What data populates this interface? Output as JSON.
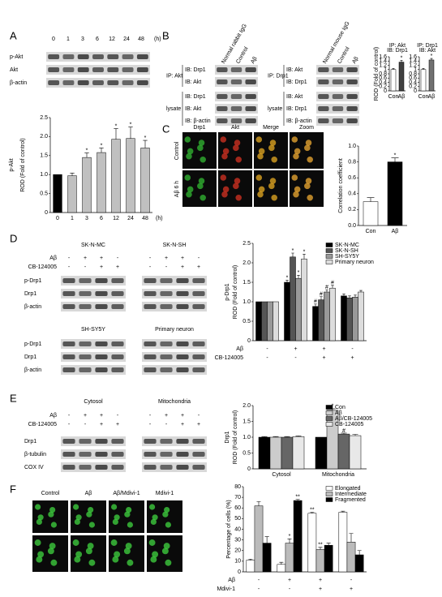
{
  "figure": {
    "panels": [
      "A",
      "B",
      "C",
      "D",
      "E",
      "F"
    ],
    "blot_a": {
      "lanes": [
        "0",
        "1",
        "3",
        "6",
        "12",
        "24",
        "48"
      ],
      "unit": "(h)",
      "rows": [
        "p-Akt",
        "Akt",
        "β-actin"
      ]
    },
    "blot_b": [
      {
        "columns": [
          "Normal rabbit IgG",
          "Control",
          "Aβ"
        ],
        "groups": [
          {
            "label": "IP: Akt",
            "rows": [
              "IB: Drp1",
              "IB: Akt"
            ]
          },
          {
            "label": "lysate",
            "rows": [
              "IB: Drp1",
              "IB: Akt",
              "IB: β-actin"
            ]
          }
        ]
      },
      {
        "columns": [
          "Normal mouse IgG",
          "Control",
          "Aβ"
        ],
        "groups": [
          {
            "label": "IP: Drp1",
            "rows": [
              "IB: Akt",
              "IB: Drp1"
            ]
          },
          {
            "label": "lysate",
            "rows": [
              "IB: Akt",
              "IB: Drp1",
              "IB: β-actin"
            ]
          }
        ]
      }
    ],
    "images_c": {
      "columns": [
        "Drp1",
        "Akt",
        "Merge",
        "Zoom"
      ],
      "rows": [
        "Control",
        "Aβ 6 h"
      ]
    },
    "blot_d": {
      "blocks": [
        "SK-N-MC",
        "SK-N-SH",
        "SH-SY5Y",
        "Primary neuron"
      ],
      "treatments": [
        {
          "name": "Aβ",
          "signs": [
            "-",
            "+",
            "+",
            "-",
            "-",
            "+",
            "+",
            "-"
          ]
        },
        {
          "name": "CB-124005",
          "signs": [
            "-",
            "-",
            "+",
            "+",
            "-",
            "-",
            "+",
            "+"
          ]
        }
      ],
      "rows": [
        "p-Drp1",
        "Drp1",
        "β-actin"
      ]
    },
    "blot_e": {
      "blocks": [
        "Cytosol",
        "Mitochondria"
      ],
      "treatments": [
        {
          "name": "Aβ",
          "signs": [
            "-",
            "+",
            "+",
            "-",
            "-",
            "+",
            "+",
            "-"
          ]
        },
        {
          "name": "CB-124005",
          "signs": [
            "-",
            "-",
            "+",
            "+",
            "-",
            "-",
            "+",
            "+"
          ]
        }
      ],
      "rows": [
        "Drp1",
        "β-tubulin",
        "COX IV"
      ]
    },
    "images_f": {
      "columns": [
        "Control",
        "Aβ",
        "Aβ/Mdivi-1",
        "Mdivi-1"
      ]
    }
  },
  "chart_data": [
    {
      "type": "bar",
      "title": "p-Akt",
      "ylabel": "ROD (Fold of control)",
      "categories": [
        "0",
        "1",
        "3",
        "6",
        "12",
        "24",
        "48"
      ],
      "xunit": "(h)",
      "ylim": [
        0,
        2.5
      ],
      "yticks": [
        0,
        0.5,
        {
          "value": 1,
          "label": "1.0"
        },
        1.5,
        {
          "value": 2,
          "label": "2.0"
        },
        2.5
      ],
      "colors": [
        "#000000",
        "#c0c0c0",
        "#c0c0c0",
        "#c0c0c0",
        "#c0c0c0",
        "#c0c0c0",
        "#c0c0c0"
      ],
      "series": [
        {
          "values": [
            1,
            0.97,
            1.45,
            1.58,
            1.93,
            1.95,
            1.7
          ],
          "errors": [
            null,
            0.07,
            0.12,
            0.12,
            0.28,
            0.3,
            0.2
          ],
          "sig": [
            null,
            null,
            "*",
            "*",
            "*",
            "*",
            "*"
          ]
        }
      ]
    },
    {
      "type": "bar",
      "title": [
        "IP: Akt",
        "IB: Drp1"
      ],
      "ylabel": "ROD (Fold of control)",
      "categories": [
        "Con",
        "Aβ"
      ],
      "ylim": [
        0,
        1.6
      ],
      "yticks": [
        0,
        0.2,
        0.4,
        0.6,
        0.8,
        1,
        1.2,
        1.4,
        1.6
      ],
      "colors": [
        "#ffffff",
        "#404040"
      ],
      "series": [
        {
          "values": [
            1,
            1.35
          ],
          "errors": [
            0.05,
            0.08
          ],
          "sig": [
            null,
            "*"
          ]
        }
      ]
    },
    {
      "type": "bar",
      "title": [
        "IP: Drp1",
        "IB: Akt"
      ],
      "categories": [
        "Con",
        "Aβ"
      ],
      "ylim": [
        0,
        1.6
      ],
      "yticks": [
        0,
        0.2,
        0.4,
        0.6,
        0.8,
        1,
        1.2,
        1.4,
        1.6
      ],
      "colors": [
        "#ffffff",
        "#707070"
      ],
      "series": [
        {
          "values": [
            1,
            1.45
          ],
          "errors": [
            0.05,
            0.07
          ],
          "sig": [
            null,
            "*"
          ]
        }
      ]
    },
    {
      "type": "bar",
      "ylabel": "Correlation coefficient",
      "categories": [
        "Con",
        "Aβ"
      ],
      "ylim": [
        0,
        1
      ],
      "yticks": [
        {
          "value": 0,
          "label": "0.0"
        },
        0.2,
        0.4,
        0.6,
        0.8,
        {
          "value": 1,
          "label": "1.0"
        }
      ],
      "colors": [
        "#ffffff",
        "#000000"
      ],
      "series": [
        {
          "values": [
            0.3,
            0.8
          ],
          "errors": [
            0.05,
            0.05
          ],
          "sig": [
            null,
            "*"
          ]
        }
      ]
    },
    {
      "type": "bar",
      "title": "p-Drp1",
      "ylabel": "ROD (Fold of control)",
      "ylim": [
        0,
        2.5
      ],
      "yticks": [
        0,
        0.5,
        {
          "value": 1,
          "label": "1.0"
        },
        1.5,
        {
          "value": 2,
          "label": "2.0"
        },
        2.5
      ],
      "legend": "upper right",
      "treatments": [
        {
          "name": "Aβ",
          "signs": [
            "-",
            "+",
            "+",
            "-"
          ]
        },
        {
          "name": "CB-124005",
          "signs": [
            "-",
            "-",
            "+",
            "+"
          ]
        }
      ],
      "series": [
        {
          "name": "SK-N-MC",
          "color": "#000000",
          "values": [
            1,
            1.5,
            0.88,
            1.15
          ],
          "errors": [
            null,
            0.05,
            0.06,
            0.05
          ],
          "sig": [
            null,
            "*",
            "#",
            null
          ]
        },
        {
          "name": "SK-N-SH",
          "color": "#555555",
          "values": [
            1,
            2.15,
            1.05,
            1.1
          ],
          "errors": [
            null,
            0.1,
            0.08,
            0.05
          ],
          "sig": [
            null,
            "*",
            "#",
            null
          ]
        },
        {
          "name": "SH-SY5Y",
          "color": "#999999",
          "values": [
            1,
            1.6,
            1.25,
            1.12
          ],
          "errors": [
            null,
            0.08,
            0.06,
            0.05
          ],
          "sig": [
            null,
            "*",
            "#",
            null
          ]
        },
        {
          "name": "Primary neuron",
          "color": "#dddddd",
          "values": [
            1,
            2.1,
            1.35,
            1.25
          ],
          "errors": [
            null,
            0.12,
            0.07,
            0.04
          ],
          "sig": [
            null,
            "*",
            "#",
            null
          ]
        }
      ]
    },
    {
      "type": "bar",
      "title": "Drp1",
      "ylabel": "ROD (Fold of control)",
      "categories": [
        "Cytosol",
        "Mitochondria"
      ],
      "ylim": [
        0,
        2
      ],
      "yticks": [
        0,
        0.5,
        {
          "value": 1,
          "label": "1.0"
        },
        1.5,
        {
          "value": 2,
          "label": "2.0"
        }
      ],
      "legend": "upper right",
      "series": [
        {
          "name": "Con",
          "color": "#000000",
          "values": [
            1,
            1
          ],
          "errors": [
            0.02,
            null
          ],
          "sig": [
            null,
            null
          ]
        },
        {
          "name": "Aβ",
          "color": "#cccccc",
          "values": [
            1,
            1.85
          ],
          "errors": [
            0.02,
            0.05
          ],
          "sig": [
            null,
            "*"
          ]
        },
        {
          "name": "Aβ/CB-124005",
          "color": "#666666",
          "values": [
            1,
            1.1
          ],
          "errors": [
            0.02,
            0.03
          ],
          "sig": [
            null,
            "#"
          ]
        },
        {
          "name": "CB-124005",
          "color": "#e8e8e8",
          "values": [
            1.02,
            1.05
          ],
          "errors": [
            0.02,
            0.04
          ],
          "sig": [
            null,
            null
          ]
        }
      ]
    },
    {
      "type": "bar",
      "ylabel": "Percentage of cells (%)",
      "ylim": [
        0,
        80
      ],
      "yticks": [
        0,
        10,
        20,
        30,
        40,
        50,
        60,
        70,
        80
      ],
      "legend": "upper right",
      "treatments": [
        {
          "name": "Aβ",
          "signs": [
            "-",
            "+",
            "+",
            "-"
          ]
        },
        {
          "name": "Mdivi-1",
          "signs": [
            "-",
            "-",
            "+",
            "+"
          ]
        }
      ],
      "series": [
        {
          "name": "Elongated",
          "color": "#ffffff",
          "values": [
            11,
            7,
            55,
            56
          ],
          "errors": [
            1,
            2,
            1,
            1
          ],
          "sig": [
            null,
            null,
            "**",
            null
          ]
        },
        {
          "name": "Intermediate",
          "color": "#bbbbbb",
          "values": [
            62,
            27,
            21,
            28
          ],
          "errors": [
            4,
            4,
            2,
            8
          ],
          "sig": [
            null,
            "*",
            "**",
            null
          ]
        },
        {
          "name": "Fragmented",
          "color": "#000000",
          "values": [
            27,
            67,
            25,
            16
          ],
          "errors": [
            6,
            1,
            2,
            4
          ],
          "sig": [
            null,
            "**",
            null,
            null
          ]
        }
      ]
    }
  ]
}
